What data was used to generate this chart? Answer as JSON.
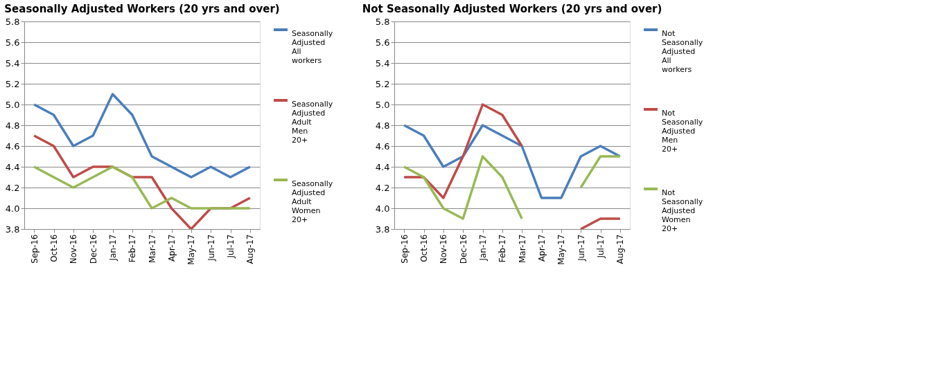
{
  "chart_data": [
    {
      "type": "line",
      "title": "Seasonally Adjusted Workers (20 yrs and over)",
      "categories": [
        "Sep-16",
        "Oct-16",
        "Nov-16",
        "Dec-16",
        "Jan-17",
        "Feb-17",
        "Mar-17",
        "Apr-17",
        "May-17",
        "Jun-17",
        "Jul-17",
        "Aug-17"
      ],
      "series": [
        {
          "name": "Seasonally Adjusted All workers",
          "color": "#4a7ebb",
          "values": [
            5.0,
            4.9,
            4.6,
            4.7,
            5.1,
            4.9,
            4.5,
            4.4,
            4.3,
            4.4,
            4.3,
            4.4
          ]
        },
        {
          "name": "Seasonally Adjusted Adult Men 20+",
          "color": "#be4b48",
          "values": [
            4.7,
            4.6,
            4.3,
            4.4,
            4.4,
            4.3,
            4.3,
            4.0,
            3.8,
            4.0,
            4.0,
            4.1
          ]
        },
        {
          "name": "Seasonally Adjusted Adult Women 20+",
          "color": "#98b954",
          "values": [
            4.4,
            4.3,
            4.2,
            4.3,
            4.4,
            4.3,
            4.0,
            4.1,
            4.0,
            4.0,
            4.0,
            4.0
          ]
        }
      ],
      "ylim": [
        3.8,
        5.8
      ],
      "yticks": [
        {
          "value": 3.8,
          "label": "3.8"
        },
        {
          "value": 4,
          "label": "4.0"
        },
        {
          "value": 4.2,
          "label": "4.2"
        },
        {
          "value": 4.4,
          "label": "4.4"
        },
        {
          "value": 4.6,
          "label": "4.6"
        },
        {
          "value": 4.8,
          "label": "4.8"
        },
        {
          "value": 5,
          "label": "5.0"
        },
        {
          "value": 5.2,
          "label": "5.2"
        },
        {
          "value": 5.4,
          "label": "5.4"
        },
        {
          "value": 5.6,
          "label": "5.6"
        },
        {
          "value": 5.8,
          "label": "5.8"
        }
      ],
      "grid": "y",
      "legend": "right",
      "marker": "none",
      "line_style": "solid"
    },
    {
      "type": "line",
      "title": "Not Seasonally Adjusted Workers (20 yrs and over)",
      "categories": [
        "Sep-16",
        "Oct-16",
        "Nov-16",
        "Dec-16",
        "Jan-17",
        "Feb-17",
        "Mar-17",
        "Apr-17",
        "May-17",
        "Jun-17",
        "Jul-17",
        "Aug-17"
      ],
      "series": [
        {
          "name": "Not Seasonally Adjusted All workers",
          "color": "#4a7ebb",
          "values": [
            4.8,
            4.7,
            4.4,
            4.5,
            4.8,
            4.7,
            4.6,
            4.1,
            4.1,
            4.5,
            4.6,
            4.5
          ]
        },
        {
          "name": "Not Seasonally Adjusted Men 20+",
          "color": "#be4b48",
          "values": [
            4.3,
            4.3,
            4.1,
            4.5,
            5.0,
            4.9,
            4.6,
            null,
            null,
            3.8,
            3.9,
            3.9
          ]
        },
        {
          "name": "Not Seasonally Adjusted Women 20+",
          "color": "#98b954",
          "values": [
            4.4,
            4.3,
            4.0,
            3.9,
            4.5,
            4.3,
            3.9,
            null,
            null,
            4.2,
            4.5,
            4.5
          ]
        }
      ],
      "ylim": [
        3.8,
        5.8
      ],
      "yticks": [
        {
          "value": 3.8,
          "label": "3.8"
        },
        {
          "value": 4,
          "label": "4.0"
        },
        {
          "value": 4.2,
          "label": "4.2"
        },
        {
          "value": 4.4,
          "label": "4.4"
        },
        {
          "value": 4.6,
          "label": "4.6"
        },
        {
          "value": 4.8,
          "label": "4.8"
        },
        {
          "value": 5,
          "label": "5.0"
        },
        {
          "value": 5.2,
          "label": "5.2"
        },
        {
          "value": 5.4,
          "label": "5.4"
        },
        {
          "value": 5.6,
          "label": "5.6"
        },
        {
          "value": 5.8,
          "label": "5.8"
        }
      ],
      "grid": "y",
      "legend": "right",
      "marker": "none",
      "line_style": "solid"
    }
  ]
}
